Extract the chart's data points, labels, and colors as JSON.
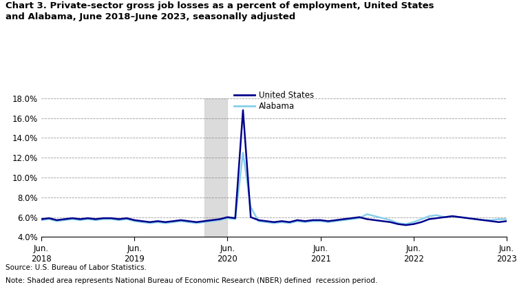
{
  "title": "Chart 3. Private-sector gross job losses as a percent of employment, United States\nand Alabama, June 2018–June 2023, seasonally adjusted",
  "source": "Source: U.S. Bureau of Labor Statistics.",
  "note": "Note: Shaded area represents National Bureau of Economic Research (NBER) defined  recession period.",
  "us_color": "#00008B",
  "al_color": "#87CEEB",
  "recession_color": "#D3D3D3",
  "recession_start": 21,
  "recession_end": 24,
  "ylim": [
    4.0,
    18.0
  ],
  "yticks": [
    4.0,
    6.0,
    8.0,
    10.0,
    12.0,
    14.0,
    16.0,
    18.0
  ],
  "xtick_positions": [
    0,
    12,
    24,
    36,
    48,
    60
  ],
  "xtick_labels": [
    "Jun.\n2018",
    "Jun.\n2019",
    "Jun.\n2020",
    "Jun.\n2021",
    "Jun.\n2022",
    "Jun.\n2023"
  ],
  "us_data": [
    5.8,
    5.9,
    5.7,
    5.8,
    5.9,
    5.8,
    5.9,
    5.8,
    5.9,
    5.9,
    5.8,
    5.9,
    5.7,
    5.6,
    5.5,
    5.6,
    5.5,
    5.6,
    5.7,
    5.6,
    5.5,
    5.6,
    5.7,
    5.8,
    6.0,
    5.9,
    16.8,
    6.0,
    5.7,
    5.6,
    5.5,
    5.6,
    5.5,
    5.7,
    5.6,
    5.7,
    5.7,
    5.6,
    5.7,
    5.8,
    5.9,
    6.0,
    5.8,
    5.7,
    5.6,
    5.5,
    5.3,
    5.2,
    5.3,
    5.5,
    5.8,
    5.9,
    6.0,
    6.1,
    6.0,
    5.9,
    5.8,
    5.7,
    5.6,
    5.5,
    5.6
  ],
  "al_data": [
    5.7,
    5.8,
    5.6,
    5.7,
    5.8,
    5.7,
    5.8,
    5.7,
    5.8,
    5.8,
    5.7,
    5.8,
    5.6,
    5.5,
    5.4,
    5.5,
    5.4,
    5.5,
    5.6,
    5.5,
    5.4,
    5.5,
    5.6,
    5.7,
    5.9,
    5.8,
    12.5,
    7.0,
    5.6,
    5.5,
    5.4,
    5.5,
    5.4,
    5.6,
    5.5,
    5.6,
    5.6,
    5.5,
    5.6,
    5.7,
    5.8,
    5.9,
    6.3,
    6.1,
    5.9,
    5.7,
    5.4,
    5.3,
    5.5,
    5.8,
    6.1,
    6.2,
    6.0,
    6.1,
    6.0,
    5.9,
    5.8,
    5.7,
    5.7,
    5.8,
    5.8
  ]
}
